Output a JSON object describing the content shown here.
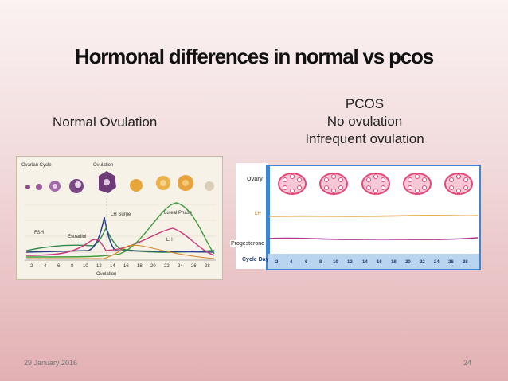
{
  "slide": {
    "title": "Hormonal differences in normal vs pcos",
    "left_label": "Normal Ovulation",
    "right_label_lines": [
      "PCOS",
      "No ovulation",
      "Infrequent ovulation"
    ],
    "footer_date": "29 January 2016",
    "page_number": "24"
  },
  "normal_chart": {
    "ovarian_cycle_label": "Ovarian Cycle",
    "ovulation_top_label": "Ovulation",
    "lh_surge_label": "LH Surge",
    "luteal_phase_label": "Luteal Phase",
    "fsh_label": "FSH",
    "estradiol_label": "Estradiol",
    "lh_label": "LH",
    "ovulation_bottom_label": "Ovulation",
    "days": [
      "2",
      "4",
      "6",
      "8",
      "10",
      "12",
      "14",
      "16",
      "18",
      "20",
      "22",
      "24",
      "26",
      "28"
    ]
  },
  "pcos_chart": {
    "ovary_label": "Ovary",
    "lh_label": "LH",
    "progesterone_label": "Progesterone",
    "cycle_day_label": "Cycle Day",
    "days": [
      "2",
      "4",
      "6",
      "8",
      "10",
      "12",
      "14",
      "16",
      "18",
      "20",
      "22",
      "24",
      "26",
      "28"
    ],
    "colors": {
      "lh": "#e8a640",
      "progesterone": "#b0338f",
      "ovary": "#e24b78"
    }
  }
}
